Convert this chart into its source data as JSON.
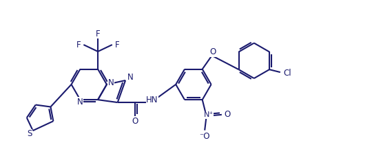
{
  "bg_color": "#ffffff",
  "line_color": "#1a1a6e",
  "lw": 1.5,
  "fs": 8.5,
  "figsize": [
    5.4,
    2.27
  ],
  "dpi": 100,
  "xlim": [
    0,
    10.8
  ],
  "ylim": [
    0,
    4.54
  ]
}
